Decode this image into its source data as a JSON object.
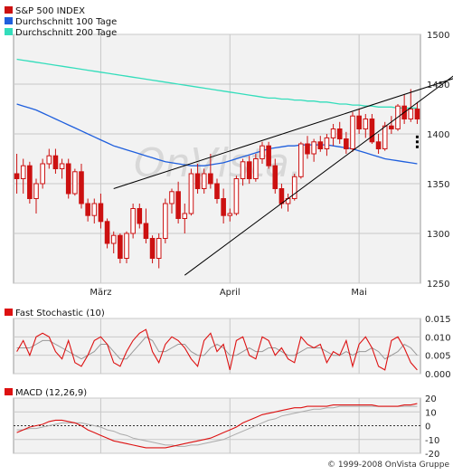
{
  "colors": {
    "candle": "#cc1111",
    "ma100": "#1f5fdd",
    "ma200": "#33ddbb",
    "trend": "#000000",
    "grid": "#c8c8c8",
    "panel_bg": "#f2f2f2",
    "stoch_fast": "#dd1111",
    "stoch_slow": "#999999",
    "macd_line": "#dd1111",
    "macd_signal": "#aaaaaa",
    "watermark": "#d8d8d8"
  },
  "watermark": "OnVista.",
  "copyright": "© 1999-2008 OnVista Gruppe",
  "chart_data": [
    {
      "type": "candlestick",
      "legend": [
        {
          "label": "S&P 500 INDEX",
          "color": "#cc1111"
        },
        {
          "label": "Durchschnitt 100 Tage",
          "color": "#1f5fdd"
        },
        {
          "label": "Durchschnitt 200 Tage",
          "color": "#33ddbb"
        }
      ],
      "x_labels": [
        {
          "label": "März",
          "index": 13
        },
        {
          "label": "April",
          "index": 33
        },
        {
          "label": "Mai",
          "index": 53
        }
      ],
      "y_ticks": [
        1250,
        1300,
        1350,
        1400,
        1450,
        1500
      ],
      "ylim": [
        1250,
        1500
      ],
      "candles": [
        [
          1360,
          1380,
          1340,
          1355
        ],
        [
          1355,
          1375,
          1340,
          1368
        ],
        [
          1368,
          1372,
          1330,
          1335
        ],
        [
          1335,
          1355,
          1320,
          1350
        ],
        [
          1350,
          1375,
          1345,
          1370
        ],
        [
          1370,
          1385,
          1365,
          1378
        ],
        [
          1378,
          1385,
          1360,
          1365
        ],
        [
          1365,
          1375,
          1355,
          1370
        ],
        [
          1370,
          1375,
          1335,
          1340
        ],
        [
          1340,
          1365,
          1338,
          1362
        ],
        [
          1362,
          1370,
          1325,
          1330
        ],
        [
          1330,
          1335,
          1312,
          1318
        ],
        [
          1318,
          1335,
          1310,
          1330
        ],
        [
          1330,
          1340,
          1305,
          1312
        ],
        [
          1312,
          1315,
          1285,
          1290
        ],
        [
          1290,
          1302,
          1280,
          1298
        ],
        [
          1298,
          1300,
          1270,
          1275
        ],
        [
          1275,
          1302,
          1270,
          1300
        ],
        [
          1300,
          1330,
          1295,
          1325
        ],
        [
          1325,
          1330,
          1305,
          1310
        ],
        [
          1310,
          1325,
          1290,
          1295
        ],
        [
          1295,
          1298,
          1270,
          1275
        ],
        [
          1275,
          1300,
          1265,
          1295
        ],
        [
          1295,
          1335,
          1290,
          1330
        ],
        [
          1330,
          1345,
          1320,
          1342
        ],
        [
          1342,
          1352,
          1310,
          1315
        ],
        [
          1315,
          1330,
          1300,
          1320
        ],
        [
          1320,
          1365,
          1318,
          1360
        ],
        [
          1360,
          1370,
          1340,
          1345
        ],
        [
          1345,
          1365,
          1340,
          1360
        ],
        [
          1360,
          1380,
          1345,
          1350
        ],
        [
          1350,
          1355,
          1330,
          1335
        ],
        [
          1335,
          1345,
          1310,
          1318
        ],
        [
          1318,
          1325,
          1312,
          1320
        ],
        [
          1320,
          1358,
          1318,
          1355
        ],
        [
          1355,
          1375,
          1348,
          1372
        ],
        [
          1372,
          1378,
          1350,
          1355
        ],
        [
          1355,
          1380,
          1352,
          1375
        ],
        [
          1375,
          1392,
          1370,
          1388
        ],
        [
          1388,
          1392,
          1365,
          1368
        ],
        [
          1368,
          1375,
          1340,
          1345
        ],
        [
          1345,
          1350,
          1325,
          1330
        ],
        [
          1330,
          1340,
          1322,
          1335
        ],
        [
          1335,
          1360,
          1333,
          1357
        ],
        [
          1357,
          1392,
          1355,
          1390
        ],
        [
          1390,
          1398,
          1375,
          1380
        ],
        [
          1380,
          1395,
          1372,
          1392
        ],
        [
          1392,
          1398,
          1382,
          1385
        ],
        [
          1385,
          1400,
          1378,
          1396
        ],
        [
          1396,
          1410,
          1388,
          1405
        ],
        [
          1405,
          1412,
          1390,
          1395
        ],
        [
          1395,
          1402,
          1380,
          1385
        ],
        [
          1385,
          1422,
          1382,
          1418
        ],
        [
          1418,
          1425,
          1400,
          1405
        ],
        [
          1405,
          1420,
          1396,
          1415
        ],
        [
          1415,
          1420,
          1390,
          1392
        ],
        [
          1392,
          1400,
          1380,
          1385
        ],
        [
          1385,
          1412,
          1383,
          1408
        ],
        [
          1408,
          1418,
          1400,
          1405
        ],
        [
          1405,
          1430,
          1403,
          1428
        ],
        [
          1428,
          1440,
          1410,
          1415
        ],
        [
          1415,
          1445,
          1412,
          1425
        ],
        [
          1425,
          1432,
          1410,
          1415
        ]
      ],
      "ma100": [
        1430,
        1428,
        1426,
        1424,
        1421,
        1418,
        1415,
        1412,
        1409,
        1406,
        1403,
        1400,
        1397,
        1394,
        1391,
        1388,
        1386,
        1384,
        1382,
        1380,
        1378,
        1376,
        1374,
        1372,
        1371,
        1370,
        1369,
        1368,
        1368,
        1368,
        1369,
        1370,
        1371,
        1373,
        1375,
        1377,
        1379,
        1381,
        1383,
        1385,
        1386,
        1387,
        1388,
        1388,
        1389,
        1389,
        1389,
        1389,
        1389,
        1388,
        1387,
        1386,
        1385,
        1383,
        1381,
        1379,
        1377,
        1375,
        1374,
        1373,
        1372,
        1371,
        1370
      ],
      "ma200": [
        1475,
        1474,
        1473,
        1472,
        1471,
        1470,
        1469,
        1468,
        1467,
        1466,
        1465,
        1464,
        1463,
        1462,
        1461,
        1460,
        1459,
        1458,
        1457,
        1456,
        1455,
        1454,
        1453,
        1452,
        1451,
        1450,
        1449,
        1448,
        1447,
        1446,
        1445,
        1444,
        1443,
        1442,
        1441,
        1440,
        1439,
        1438,
        1437,
        1436,
        1436,
        1435,
        1435,
        1434,
        1434,
        1433,
        1433,
        1432,
        1432,
        1431,
        1430,
        1430,
        1429,
        1429,
        1428,
        1428,
        1427,
        1427,
        1427,
        1426,
        1426,
        1426,
        1426
      ],
      "trendlines": [
        {
          "from": [
            15,
            1345
          ],
          "to": [
            63,
            1445
          ]
        },
        {
          "from": [
            26,
            1258
          ],
          "to": [
            63,
            1434
          ]
        }
      ],
      "signal_markers": [
        1397,
        1392,
        1387
      ]
    },
    {
      "type": "line",
      "title": "Fast Stochastic (10)",
      "y_ticks": [
        "0.000",
        "0.005",
        "0.010",
        "0.015"
      ],
      "ylim": [
        0,
        0.015
      ],
      "series": [
        {
          "name": "fast",
          "values": [
            0.006,
            0.009,
            0.005,
            0.01,
            0.011,
            0.01,
            0.006,
            0.004,
            0.009,
            0.003,
            0.002,
            0.005,
            0.009,
            0.01,
            0.008,
            0.003,
            0.002,
            0.006,
            0.009,
            0.011,
            0.012,
            0.006,
            0.003,
            0.008,
            0.01,
            0.009,
            0.007,
            0.004,
            0.002,
            0.009,
            0.011,
            0.006,
            0.008,
            0.001,
            0.009,
            0.01,
            0.005,
            0.004,
            0.01,
            0.009,
            0.005,
            0.007,
            0.004,
            0.003,
            0.01,
            0.008,
            0.007,
            0.008,
            0.003,
            0.006,
            0.005,
            0.009,
            0.002,
            0.008,
            0.01,
            0.007,
            0.002,
            0.001,
            0.009,
            0.01,
            0.007,
            0.003,
            0.001
          ]
        },
        {
          "name": "slow",
          "values": [
            0.007,
            0.007,
            0.007,
            0.008,
            0.009,
            0.009,
            0.008,
            0.007,
            0.006,
            0.005,
            0.004,
            0.005,
            0.006,
            0.008,
            0.008,
            0.006,
            0.004,
            0.004,
            0.006,
            0.008,
            0.01,
            0.009,
            0.006,
            0.006,
            0.007,
            0.008,
            0.008,
            0.006,
            0.005,
            0.005,
            0.007,
            0.008,
            0.007,
            0.005,
            0.005,
            0.006,
            0.007,
            0.006,
            0.006,
            0.007,
            0.007,
            0.006,
            0.005,
            0.005,
            0.006,
            0.007,
            0.007,
            0.007,
            0.006,
            0.005,
            0.005,
            0.006,
            0.005,
            0.006,
            0.006,
            0.007,
            0.006,
            0.004,
            0.005,
            0.006,
            0.008,
            0.007,
            0.005
          ]
        }
      ]
    },
    {
      "type": "line",
      "title": "MACD (12,26,9)",
      "y_ticks": [
        -20,
        -10,
        0,
        10,
        20
      ],
      "ylim": [
        -20,
        20
      ],
      "series": [
        {
          "name": "macd",
          "values": [
            -5,
            -3,
            -1,
            0,
            1,
            3,
            4,
            4,
            3,
            2,
            0,
            -3,
            -5,
            -7,
            -9,
            -11,
            -12,
            -13,
            -14,
            -15,
            -16,
            -16,
            -16,
            -16,
            -15,
            -14,
            -13,
            -12,
            -11,
            -10,
            -9,
            -7,
            -5,
            -3,
            -1,
            2,
            4,
            6,
            8,
            9,
            10,
            11,
            12,
            13,
            13,
            14,
            14,
            14,
            14,
            15,
            15,
            15,
            15,
            15,
            15,
            15,
            14,
            14,
            14,
            14,
            15,
            15,
            16
          ]
        },
        {
          "name": "signal",
          "values": [
            -3,
            -3,
            -2,
            -2,
            -1,
            0,
            1,
            2,
            2,
            2,
            2,
            1,
            0,
            -1,
            -3,
            -4,
            -6,
            -7,
            -9,
            -10,
            -11,
            -12,
            -13,
            -14,
            -14,
            -15,
            -15,
            -14,
            -14,
            -13,
            -12,
            -11,
            -10,
            -8,
            -6,
            -4,
            -2,
            0,
            2,
            4,
            5,
            7,
            8,
            9,
            10,
            11,
            12,
            12,
            13,
            13,
            14,
            14,
            14,
            14,
            14,
            14,
            14,
            14,
            14,
            14,
            14,
            14,
            14
          ]
        }
      ]
    }
  ]
}
